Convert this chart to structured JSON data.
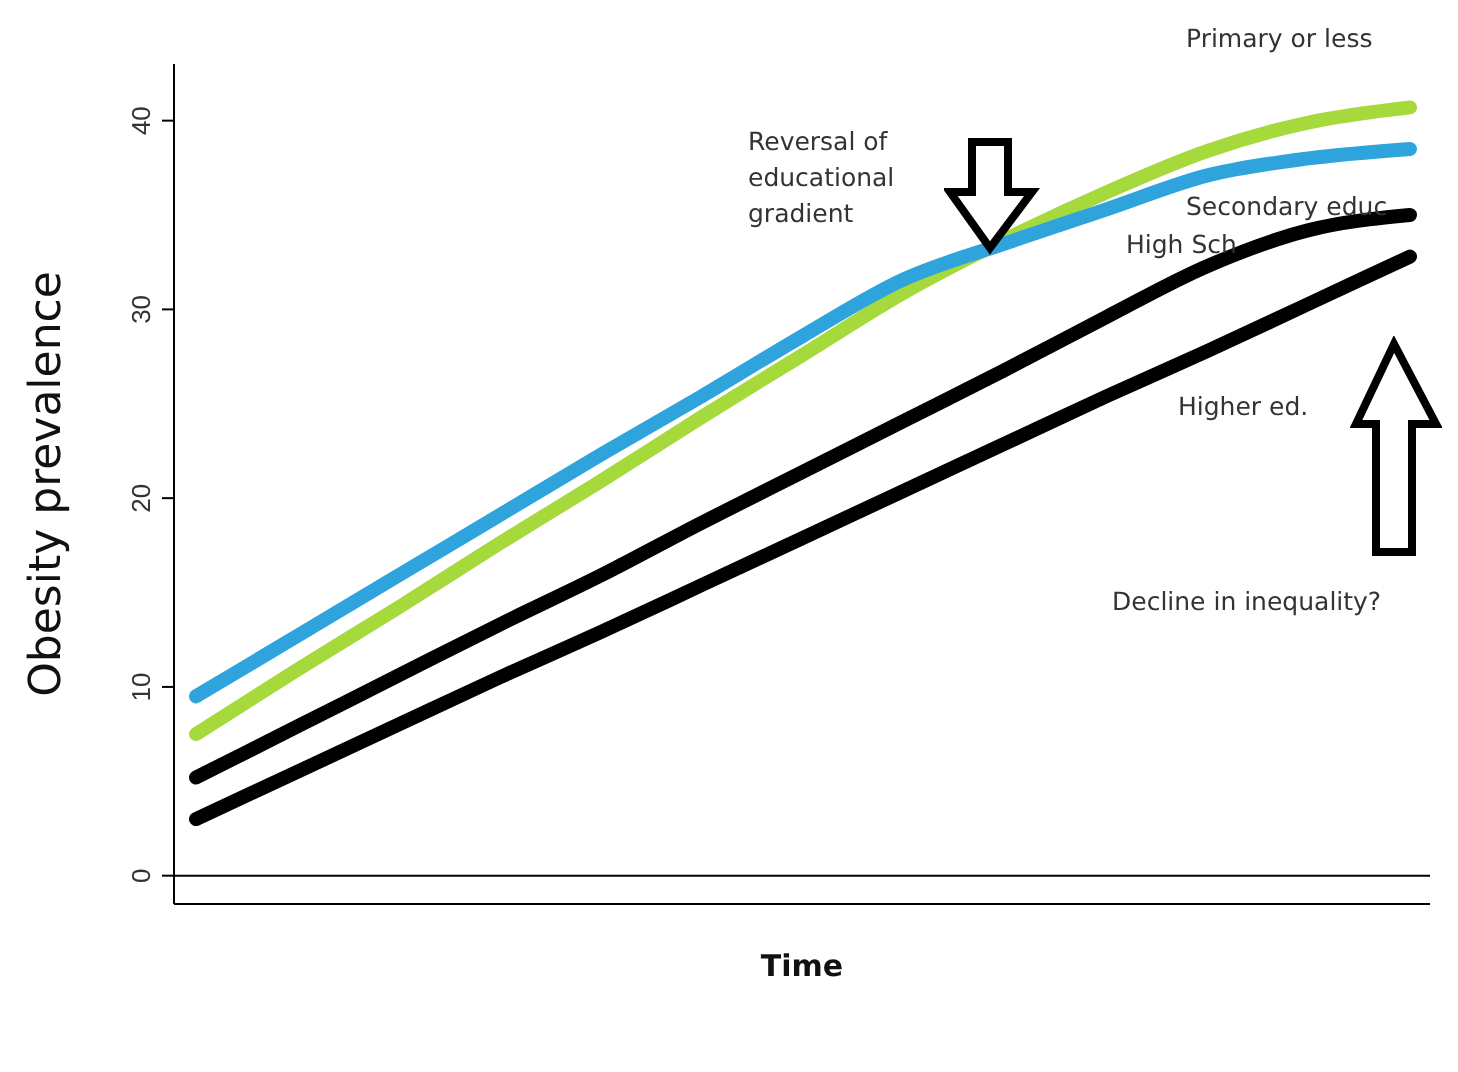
{
  "chart_data": {
    "type": "line",
    "xlabel": "Time",
    "ylabel": "Obesity prevalence",
    "categories": [
      null,
      null,
      null,
      null,
      null,
      null,
      null,
      null,
      null,
      null,
      null,
      null,
      null
    ],
    "series": [
      {
        "name": "Primary or less",
        "color": "#a6d93b",
        "values": [
          7.5,
          10.9,
          14.2,
          17.6,
          20.9,
          24.3,
          27.6,
          30.9,
          33.7,
          36.2,
          38.4,
          39.9,
          40.7
        ]
      },
      {
        "name": "Secondary educ",
        "color": "#2fa3dc",
        "values": [
          9.5,
          12.7,
          15.9,
          19.1,
          22.3,
          25.4,
          28.6,
          31.6,
          33.5,
          35.3,
          37.1,
          38.0,
          38.5
        ]
      },
      {
        "name": "High Sch",
        "color": "#000000",
        "values": [
          5.2,
          7.9,
          10.6,
          13.3,
          15.9,
          18.7,
          21.4,
          24.1,
          26.8,
          29.6,
          32.3,
          34.2,
          35.0
        ]
      },
      {
        "name": "Higher ed.",
        "color": "#000000",
        "values": [
          3.0,
          5.5,
          8.0,
          10.5,
          12.9,
          15.4,
          17.9,
          20.4,
          22.9,
          25.4,
          27.8,
          30.3,
          32.8
        ]
      }
    ],
    "ylim": [
      -1.5,
      43
    ],
    "yticks": [
      0,
      10,
      20,
      30,
      40
    ],
    "grid": false,
    "legend": false,
    "marker": "none",
    "line_style": "solid",
    "ref_lines": [
      {
        "axis": "y",
        "value": 0,
        "color": "#000000"
      }
    ],
    "annotations": [
      "Reversal of educational gradient",
      "Decline in inequality?"
    ]
  }
}
